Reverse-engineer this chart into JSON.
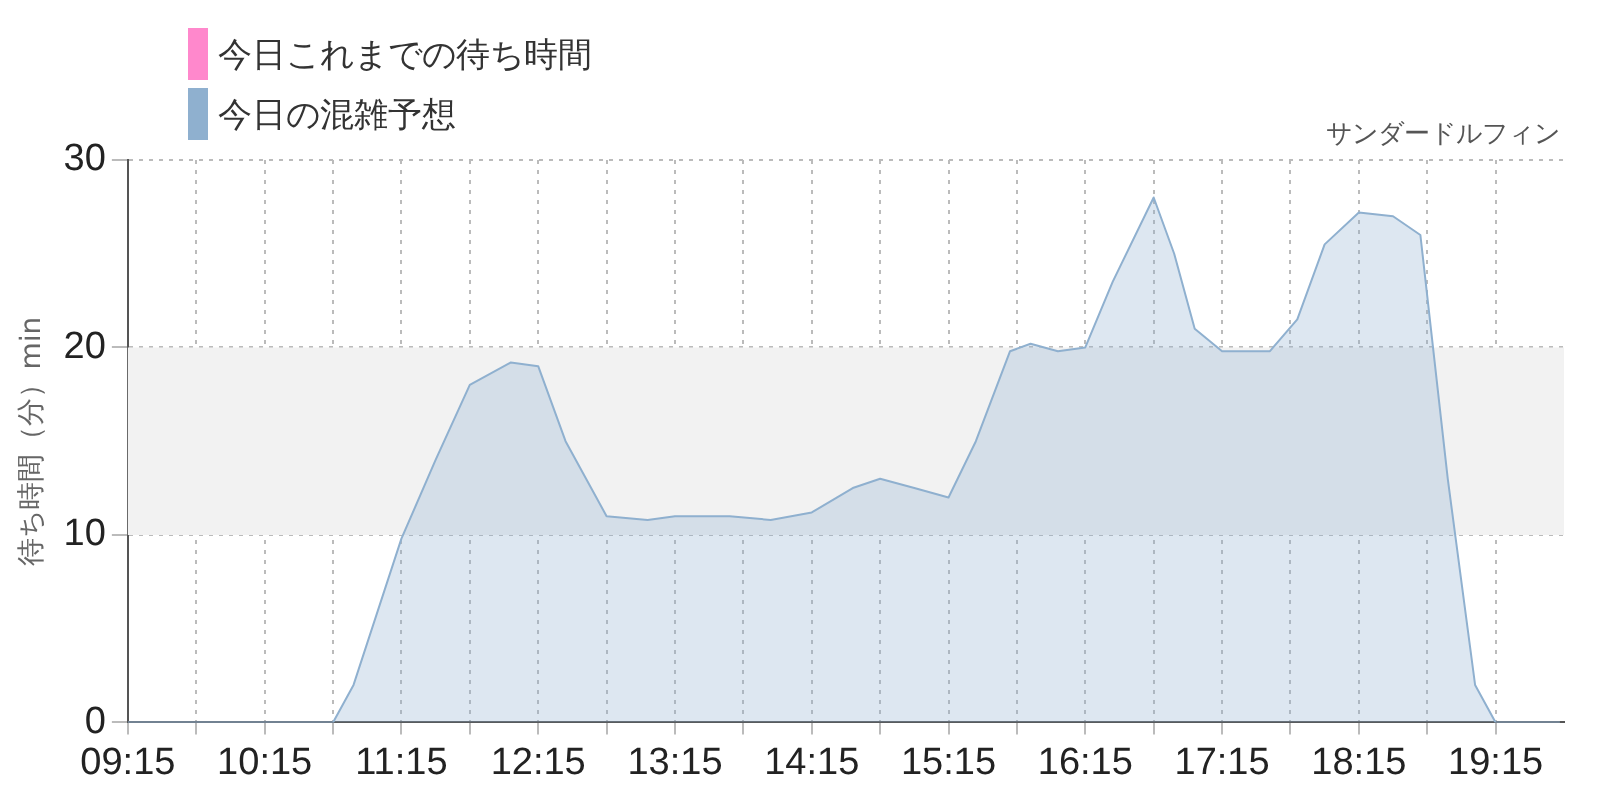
{
  "chart_data": {
    "type": "area",
    "subtitle": "サンダードルフィン",
    "ylabel": "待ち時間（分）min",
    "series": [
      {
        "name": "今日これまでの待ち時間",
        "color": "#ff88cc"
      },
      {
        "name": "今日の混雑予想",
        "color": "#8fb0cf",
        "x": [
          9.25,
          10.15,
          10.6,
          10.75,
          10.9,
          11.25,
          11.5,
          11.75,
          12.05,
          12.25,
          12.45,
          12.75,
          13.05,
          13.25,
          13.65,
          13.95,
          14.25,
          14.55,
          14.75,
          15.0,
          15.25,
          15.45,
          15.7,
          15.85,
          16.05,
          16.25,
          16.45,
          16.75,
          16.9,
          17.05,
          17.25,
          17.6,
          17.8,
          18.0,
          18.25,
          18.5,
          18.7,
          18.9,
          19.1,
          19.25,
          19.4,
          19.72
        ],
        "values": [
          0,
          0,
          0,
          0,
          2,
          9.8,
          14,
          18,
          19.2,
          19,
          15,
          11,
          10.8,
          11,
          11,
          10.8,
          11.2,
          12.5,
          13,
          12.5,
          12,
          15,
          19.8,
          20.2,
          19.8,
          20,
          23.5,
          28,
          25,
          21,
          19.8,
          19.8,
          21.5,
          25.5,
          27.2,
          27,
          26,
          13,
          2,
          0,
          0,
          0
        ]
      }
    ],
    "xlim": [
      9.25,
      19.75
    ],
    "xticks": [
      {
        "value": 9.25,
        "label": "09:15"
      },
      {
        "value": 9.75,
        "label": null
      },
      {
        "value": 10.25,
        "label": "10:15"
      },
      {
        "value": 10.75,
        "label": null
      },
      {
        "value": 11.25,
        "label": "11:15"
      },
      {
        "value": 11.75,
        "label": null
      },
      {
        "value": 12.25,
        "label": "12:15"
      },
      {
        "value": 12.75,
        "label": null
      },
      {
        "value": 13.25,
        "label": "13:15"
      },
      {
        "value": 13.75,
        "label": null
      },
      {
        "value": 14.25,
        "label": "14:15"
      },
      {
        "value": 14.75,
        "label": null
      },
      {
        "value": 15.25,
        "label": "15:15"
      },
      {
        "value": 15.75,
        "label": null
      },
      {
        "value": 16.25,
        "label": "16:15"
      },
      {
        "value": 16.75,
        "label": null
      },
      {
        "value": 17.25,
        "label": "17:15"
      },
      {
        "value": 17.75,
        "label": null
      },
      {
        "value": 18.25,
        "label": "18:15"
      },
      {
        "value": 18.75,
        "label": null
      },
      {
        "value": 19.25,
        "label": "19:15"
      }
    ],
    "ylim": [
      0,
      30
    ],
    "yticks": [
      0,
      10,
      20,
      30
    ],
    "bands": [
      {
        "axis": "y",
        "from": 10,
        "to": 20,
        "color": "#f2f2f2"
      }
    ],
    "grid": true,
    "legend": "top left",
    "marker": "none",
    "line_style": "solid"
  }
}
